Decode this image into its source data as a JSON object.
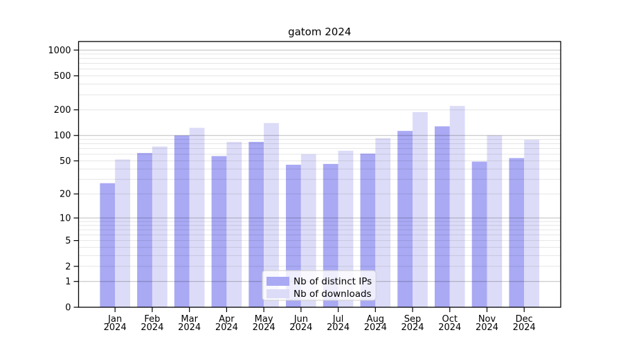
{
  "chart_data": {
    "type": "bar",
    "title": "gatom 2024",
    "categories": [
      "Jan",
      "Feb",
      "Mar",
      "Apr",
      "May",
      "Jun",
      "Jul",
      "Aug",
      "Sep",
      "Oct",
      "Nov",
      "Dec"
    ],
    "category_year": "2024",
    "series": [
      {
        "name": "Nb of distinct IPs",
        "color": "#a9a9f4",
        "values": [
          27,
          62,
          100,
          57,
          84,
          45,
          46,
          61,
          113,
          128,
          49,
          54
        ]
      },
      {
        "name": "Nb of downloads",
        "color": "#dcdcf8",
        "values": [
          52,
          74,
          123,
          84,
          140,
          60,
          66,
          93,
          188,
          222,
          100,
          89
        ]
      }
    ],
    "xlabel": "",
    "ylabel": "",
    "y_axis": {
      "scale": "log10(value+1)",
      "tick_values": [
        0,
        1,
        2,
        5,
        10,
        20,
        50,
        100,
        200,
        500,
        1000
      ],
      "major_gridline_values": [
        1,
        10,
        100,
        1000
      ],
      "minor_gridline_values": [
        2,
        3,
        4,
        5,
        6,
        7,
        8,
        9,
        20,
        30,
        40,
        50,
        60,
        70,
        80,
        90,
        200,
        300,
        400,
        500,
        600,
        700,
        800,
        900
      ],
      "top_value": 1258
    },
    "grid": "on",
    "legend_position": "inside-bottom-center",
    "colors": {
      "major_gridline": "rgba(0,0,0,0.26)",
      "minor_gridline": "rgba(0,0,0,0.10)",
      "spine": "#000000",
      "legend_border": "#cccccc",
      "legend_background": "rgba(255,255,255,0.8)"
    }
  }
}
